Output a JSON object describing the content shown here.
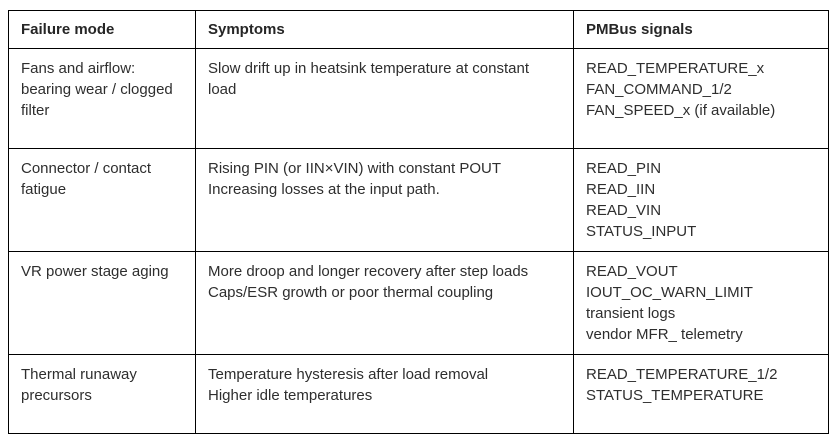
{
  "colors": {
    "background": "#ffffff",
    "border": "#000000",
    "text": "#2e2e2e"
  },
  "table": {
    "headers": {
      "failure_mode": "Failure mode",
      "symptoms": "Symptoms",
      "pmbus_signals": "PMBus signals"
    },
    "rows": [
      {
        "failure_mode": [
          "Fans and airflow:",
          "bearing wear / clogged",
          "filter"
        ],
        "symptoms": [
          "Slow drift up in heatsink temperature at constant",
          "load"
        ],
        "pmbus_signals": [
          "READ_TEMPERATURE_x",
          "FAN_COMMAND_1/2",
          "FAN_SPEED_x (if available)"
        ]
      },
      {
        "failure_mode": [
          "Connector / contact",
          "fatigue"
        ],
        "symptoms": [
          "Rising PIN (or IIN×VIN) with constant POUT",
          "Increasing losses at the input path."
        ],
        "pmbus_signals": [
          "READ_PIN",
          "READ_IIN",
          "READ_VIN",
          "STATUS_INPUT"
        ]
      },
      {
        "failure_mode": [
          "VR power stage aging"
        ],
        "symptoms": [
          "More droop and longer recovery after step loads",
          "Caps/ESR growth or poor thermal coupling"
        ],
        "pmbus_signals": [
          "READ_VOUT",
          "IOUT_OC_WARN_LIMIT",
          "transient logs",
          "vendor MFR_ telemetry"
        ]
      },
      {
        "failure_mode": [
          "Thermal runaway",
          "precursors"
        ],
        "symptoms": [
          "Temperature hysteresis after load removal",
          "Higher idle temperatures"
        ],
        "pmbus_signals": [
          "READ_TEMPERATURE_1/2",
          "STATUS_TEMPERATURE"
        ]
      }
    ]
  }
}
